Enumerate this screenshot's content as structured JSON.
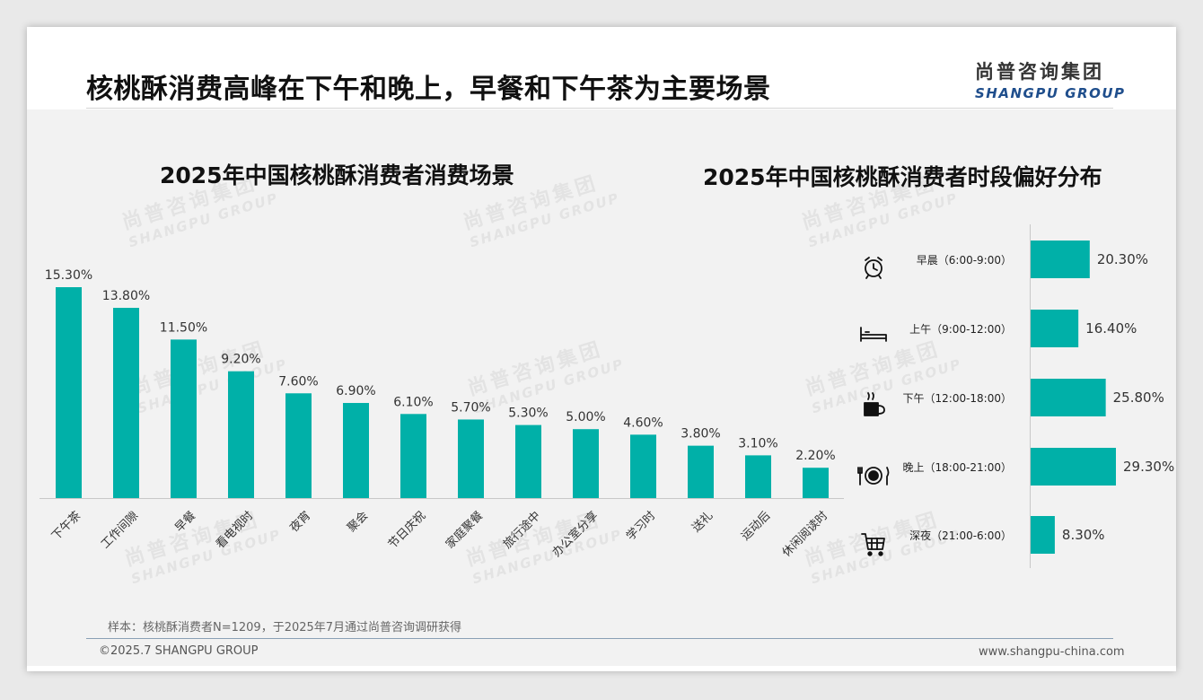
{
  "header": {
    "title": "核桃酥消费高峰在下午和晚上，早餐和下午茶为主要场景",
    "logo_cn": "尚普咨询集团",
    "logo_en": "SHANGPU GROUP"
  },
  "watermark": {
    "cn": "尚普咨询集团",
    "en": "SHANGPU GROUP"
  },
  "chart_data": [
    {
      "type": "bar",
      "title": "2025年中国核桃酥消费者消费场景",
      "categories": [
        "下午茶",
        "工作间隙",
        "早餐",
        "看电视时",
        "夜宵",
        "聚会",
        "节日庆祝",
        "家庭聚餐",
        "旅行途中",
        "办公室分享",
        "学习时",
        "送礼",
        "运动后",
        "休闲阅读时"
      ],
      "values": [
        15.3,
        13.8,
        11.5,
        9.2,
        7.6,
        6.9,
        6.1,
        5.7,
        5.3,
        5.0,
        4.6,
        3.8,
        3.1,
        2.2
      ],
      "value_labels": [
        "15.30%",
        "13.80%",
        "11.50%",
        "9.20%",
        "7.60%",
        "6.90%",
        "6.10%",
        "5.70%",
        "5.30%",
        "5.00%",
        "4.60%",
        "3.80%",
        "3.10%",
        "2.20%"
      ],
      "color": "#00b0a8",
      "grid": false
    },
    {
      "type": "bar",
      "orientation": "horizontal",
      "title": "2025年中国核桃酥消费者时段偏好分布",
      "categories": [
        "早晨（6:00-9:00）",
        "上午（9:00-12:00）",
        "下午（12:00-18:00）",
        "晚上（18:00-21:00）",
        "深夜（21:00-6:00）"
      ],
      "icons": [
        "alarm-clock-icon",
        "bed-icon",
        "coffee-cup-icon",
        "plate-cutlery-icon",
        "shopping-cart-icon"
      ],
      "values": [
        20.3,
        16.4,
        25.8,
        29.3,
        8.3
      ],
      "value_labels": [
        "20.30%",
        "16.40%",
        "25.80%",
        "29.30%",
        "8.30%"
      ],
      "color": "#00b0a8",
      "grid": false
    }
  ],
  "footer": {
    "sample_note": "样本：核桃酥消费者N=1209，于2025年7月通过尚普咨询调研获得",
    "copyright": "©2025.7 SHANGPU GROUP",
    "website": "www.shangpu-china.com"
  }
}
